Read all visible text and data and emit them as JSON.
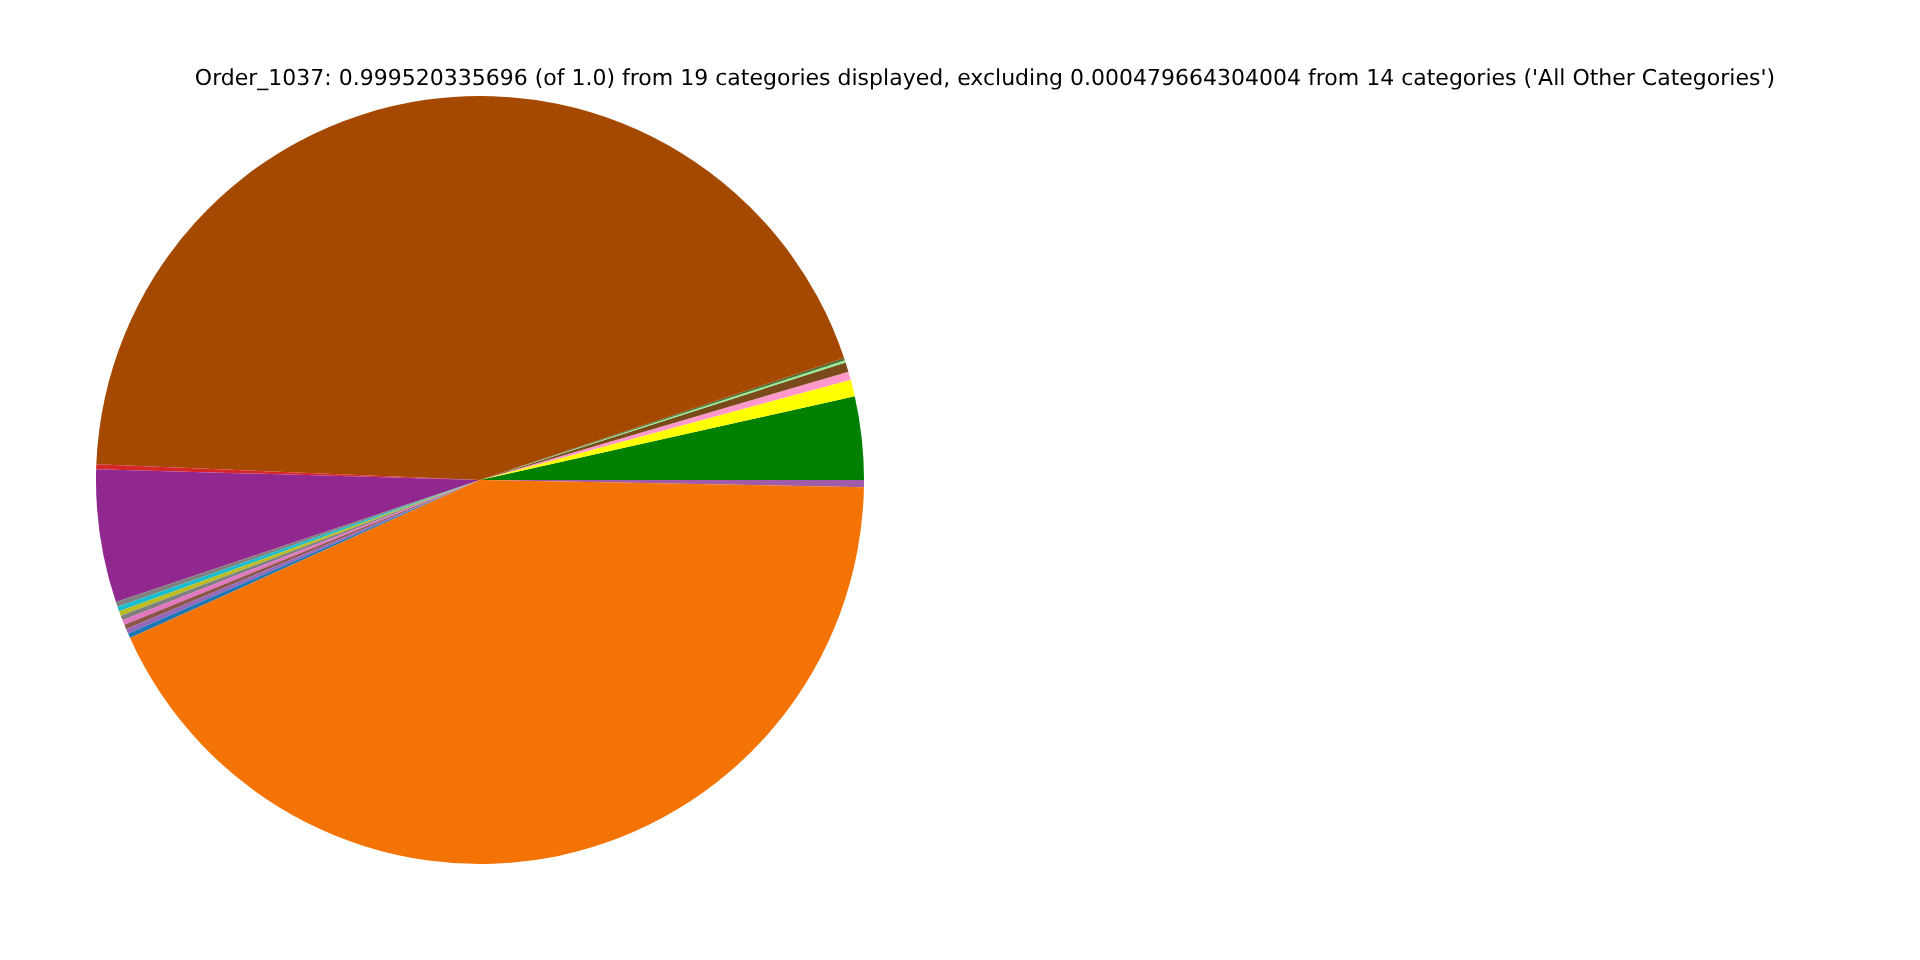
{
  "chart_data": {
    "type": "pie",
    "title": "Order_1037: 0.999520335696 (of 1.0) from 19 categories displayed, excluding 0.000479664304004 from 14 categories ('All Other Categories')",
    "categories": [
      null,
      null,
      null,
      null,
      null,
      null,
      null,
      null,
      null,
      null,
      null,
      null,
      null,
      null,
      null,
      null,
      null,
      null,
      null
    ],
    "values": [
      0.3,
      3.5,
      0.7,
      0.35,
      0.4,
      0.1,
      0.1,
      44.2,
      0.2,
      5.6,
      0.2,
      0.2,
      0.2,
      0.2,
      0.2,
      0.2,
      0.2,
      0.2,
      42.95
    ],
    "colors": [
      "#a05ca8",
      "#008000",
      "#ffff00",
      "#ff99cc",
      "#7a4a1a",
      "#90ee90",
      "#556b2f",
      "#a54800",
      "#d62728",
      "#912890",
      "#808080",
      "#17becf",
      "#bcbd22",
      "#7f7f7f",
      "#e377c2",
      "#8c564b",
      "#9467bd",
      "#1f77b4",
      "#f37304"
    ],
    "legend": false
  }
}
